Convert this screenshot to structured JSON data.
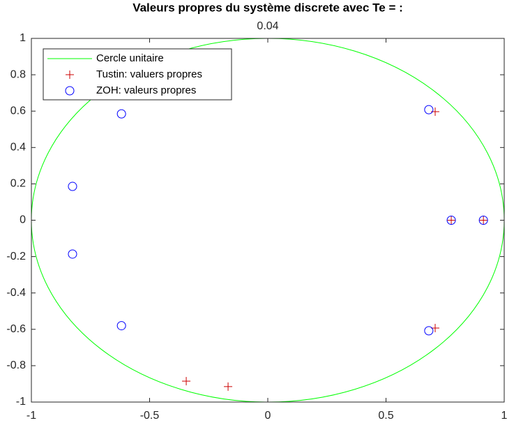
{
  "chart_data": {
    "type": "scatter",
    "title": "Valeurs propres du système discrete avec Te = :",
    "subtitle": "0.04",
    "xlim": [
      -1,
      1
    ],
    "ylim": [
      -1,
      1
    ],
    "xticks": [
      -1,
      -0.5,
      0,
      0.5,
      1
    ],
    "yticks": [
      -1,
      -0.8,
      -0.6,
      -0.4,
      -0.2,
      0,
      0.2,
      0.4,
      0.6,
      0.8,
      1
    ],
    "legend": "upper left",
    "circle": {
      "name": "Cercle unitaire",
      "color": "#00ff00",
      "center": [
        0,
        0
      ],
      "radius": 1
    },
    "series": [
      {
        "name": "Tustin: valuers propres",
        "color": "#cc0000",
        "marker": "plus",
        "x": [
          0.708,
          0.708,
          0.776,
          0.912,
          -0.345,
          -0.168
        ],
        "values": [
          0.597,
          -0.593,
          0,
          0,
          -0.885,
          -0.915
        ]
      },
      {
        "name": "ZOH: valeurs propres",
        "color": "#0000ff",
        "marker": "circle",
        "x": [
          0.681,
          0.681,
          0.776,
          0.912,
          -0.619,
          -0.619,
          -0.826,
          -0.826
        ],
        "values": [
          0.608,
          -0.608,
          0,
          0,
          0.585,
          -0.58,
          0.186,
          -0.186
        ]
      }
    ]
  }
}
